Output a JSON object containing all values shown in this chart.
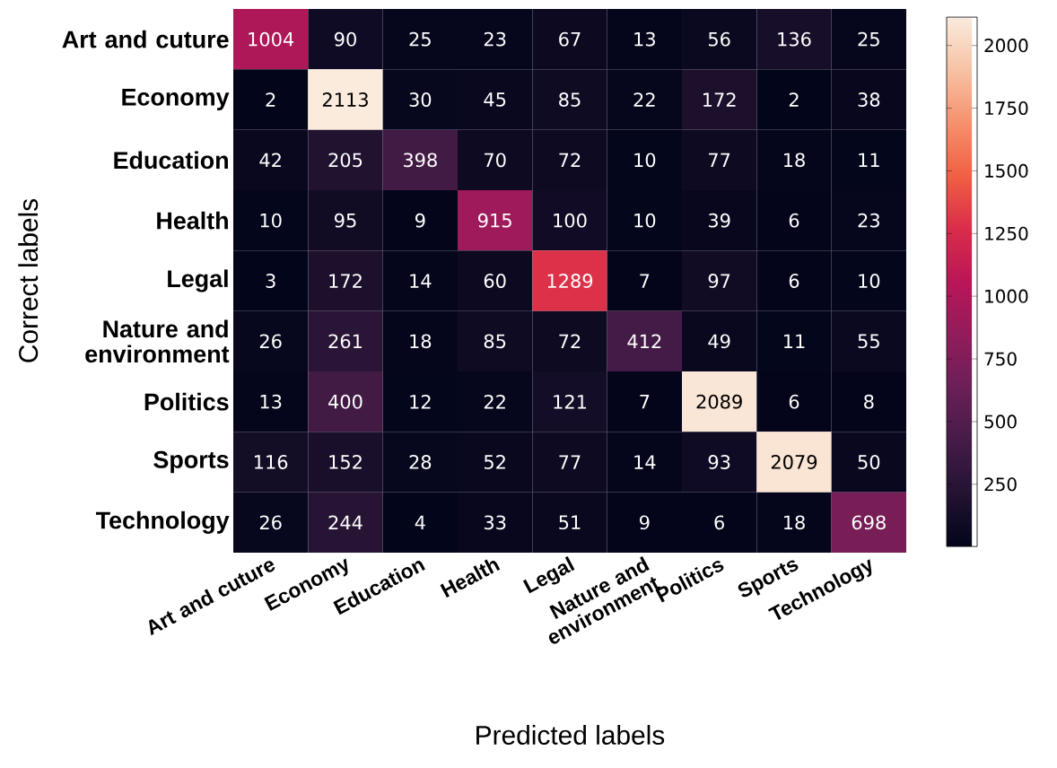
{
  "chart_data": {
    "type": "heatmap",
    "categories": [
      "Art and cuture",
      "Economy",
      "Education",
      "Health",
      "Legal",
      "Nature and environment",
      "Politics",
      "Sports",
      "Technology"
    ],
    "y_categories": [
      "Art and cuture",
      "Economy",
      "Education",
      "Health",
      "Legal",
      "Nature and environment",
      "Politics",
      "Sports",
      "Technology"
    ],
    "cells": [
      [
        1004,
        90,
        25,
        23,
        67,
        13,
        56,
        136,
        25
      ],
      [
        2,
        2113,
        30,
        45,
        85,
        22,
        172,
        2,
        38
      ],
      [
        42,
        205,
        398,
        70,
        72,
        10,
        77,
        18,
        11
      ],
      [
        10,
        95,
        9,
        915,
        100,
        10,
        39,
        6,
        23
      ],
      [
        3,
        172,
        14,
        60,
        1289,
        7,
        97,
        6,
        10
      ],
      [
        26,
        261,
        18,
        85,
        72,
        412,
        49,
        11,
        55
      ],
      [
        13,
        400,
        12,
        22,
        121,
        7,
        2089,
        6,
        8
      ],
      [
        116,
        152,
        28,
        52,
        77,
        14,
        93,
        2079,
        50
      ],
      [
        26,
        244,
        4,
        33,
        51,
        9,
        6,
        18,
        698
      ]
    ],
    "clim": [
      2,
      2113
    ],
    "cticks": [
      250,
      500,
      750,
      1000,
      1250,
      1500,
      1750,
      2000
    ],
    "xlabel": "Predicted labels",
    "ylabel": "Correct labels",
    "data_labels": true
  }
}
